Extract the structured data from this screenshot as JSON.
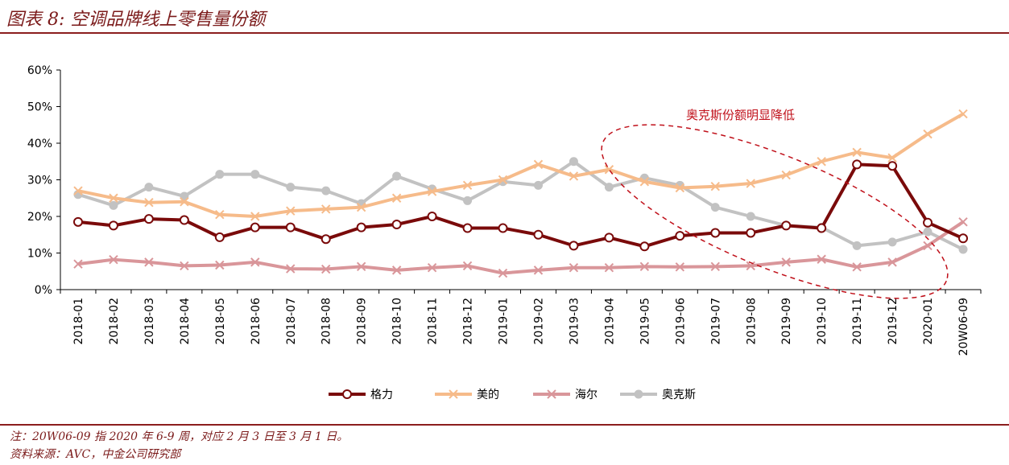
{
  "header": {
    "title": "图表 8: 空调品牌线上零售量份额"
  },
  "footer": {
    "note": "注：20W06-09 指 2020 年 6-9 周，对应 2 月 3 日至 3 月 1 日。",
    "source": "资料来源：AVC，中金公司研究部"
  },
  "colors": {
    "brand_rule": "#8b1e1e",
    "annotation": "#c0101a",
    "gree": "#7a0a0a",
    "midea": "#f6bb8a",
    "haier": "#d9969a",
    "aux": "#c2c2c2"
  },
  "chart_data": {
    "type": "line",
    "categories": [
      "2018-01",
      "2018-02",
      "2018-03",
      "2018-04",
      "2018-05",
      "2018-06",
      "2018-07",
      "2018-08",
      "2018-09",
      "2018-10",
      "2018-11",
      "2018-12",
      "2019-01",
      "2019-02",
      "2019-03",
      "2019-04",
      "2019-05",
      "2019-06",
      "2019-07",
      "2019-08",
      "2019-09",
      "2019-10",
      "2019-11",
      "2019-12",
      "2020-01",
      "20W06-09"
    ],
    "ylim": [
      0,
      60
    ],
    "yticks": [
      0,
      10,
      20,
      30,
      40,
      50,
      60
    ],
    "ytick_labels": [
      "0%",
      "10%",
      "20%",
      "30%",
      "40%",
      "50%",
      "60%"
    ],
    "grid": false,
    "legend_position": "bottom",
    "series": [
      {
        "name": "格力",
        "marker": "circle-open",
        "color": "#7a0a0a",
        "values": [
          18.5,
          17.5,
          19.3,
          19,
          14.3,
          17,
          17,
          13.8,
          17,
          17.8,
          20,
          16.8,
          16.8,
          15,
          12,
          14.2,
          11.8,
          14.7,
          15.5,
          15.5,
          17.5,
          16.8,
          34.2,
          33.8,
          18.3,
          14
        ]
      },
      {
        "name": "美的",
        "marker": "x",
        "color": "#f6bb8a",
        "values": [
          27,
          25,
          23.8,
          24,
          20.5,
          20,
          21.5,
          22,
          22.5,
          25,
          26.8,
          28.5,
          30,
          34.2,
          31,
          32.8,
          29.5,
          27.8,
          28.2,
          29,
          31.3,
          35,
          37.5,
          36,
          42.5,
          48
        ]
      },
      {
        "name": "海尔",
        "marker": "x",
        "color": "#d9969a",
        "values": [
          7,
          8.2,
          7.5,
          6.5,
          6.7,
          7.5,
          5.7,
          5.6,
          6.3,
          5.3,
          6,
          6.5,
          4.5,
          5.3,
          6,
          6,
          6.3,
          6.2,
          6.3,
          6.5,
          7.5,
          8.3,
          6.2,
          7.5,
          12,
          18.5
        ]
      },
      {
        "name": "奥克斯",
        "marker": "circle",
        "color": "#c2c2c2",
        "values": [
          26,
          23,
          28,
          25.5,
          31.5,
          31.5,
          28,
          27,
          23.5,
          31,
          27.5,
          24.3,
          29.5,
          28.5,
          35,
          28,
          30.5,
          28.5,
          22.5,
          20,
          17.5,
          17,
          12,
          13,
          15.8,
          11
        ]
      }
    ],
    "annotations": [
      {
        "text": "奥克斯份额明显降低"
      }
    ]
  }
}
